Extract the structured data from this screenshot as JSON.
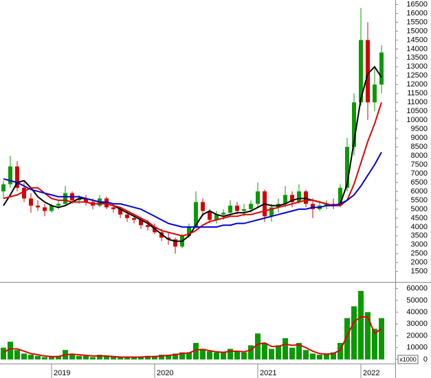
{
  "chart_data": [
    {
      "type": "candlestick",
      "open": [
        6000,
        6400,
        7400,
        6200,
        5600,
        5200,
        5100,
        4900,
        5200,
        5300,
        5900,
        5500,
        5600,
        5400,
        5200,
        5600,
        5100,
        5000,
        4700,
        4500,
        4400,
        4100,
        4000,
        3700,
        3400,
        3300,
        2900,
        3500,
        4000,
        5400,
        4900,
        4400,
        4700,
        4800,
        5200,
        4900,
        5000,
        5300,
        6000,
        4600,
        5100,
        5300,
        5800,
        5400,
        6000,
        5300,
        5000,
        5200,
        5300,
        5200,
        6200,
        8500,
        11000,
        14500,
        11000,
        12000
      ],
      "high": [
        6600,
        8000,
        7700,
        6500,
        5900,
        5500,
        5300,
        5300,
        5500,
        6300,
        6000,
        5800,
        5800,
        5600,
        5800,
        5700,
        5300,
        5100,
        4900,
        4700,
        4500,
        4400,
        4200,
        3900,
        3700,
        3400,
        3600,
        4200,
        6000,
        5600,
        5000,
        4900,
        5000,
        5500,
        5400,
        5300,
        5500,
        6500,
        6100,
        5300,
        5600,
        6300,
        6000,
        6400,
        6100,
        5600,
        5400,
        5500,
        5600,
        6400,
        9000,
        11500,
        16300,
        15500,
        13000,
        14200
      ],
      "low": [
        5600,
        6200,
        6000,
        5400,
        4800,
        4900,
        4600,
        4800,
        5000,
        5200,
        5300,
        5300,
        5200,
        5000,
        5100,
        5000,
        4800,
        4500,
        4300,
        4200,
        3900,
        3800,
        3600,
        3200,
        3000,
        2500,
        2800,
        3400,
        3900,
        4600,
        4200,
        4200,
        4400,
        4600,
        4700,
        4600,
        4800,
        5100,
        4300,
        4300,
        4800,
        5100,
        5100,
        5300,
        5100,
        4500,
        4900,
        5000,
        5000,
        5100,
        6000,
        8000,
        10800,
        10000,
        10500,
        11500
      ],
      "close": [
        6400,
        7400,
        6200,
        5600,
        5200,
        5100,
        4900,
        5200,
        5300,
        5900,
        5500,
        5600,
        5400,
        5200,
        5600,
        5100,
        5000,
        4700,
        4500,
        4400,
        4100,
        4000,
        3700,
        3400,
        3300,
        2900,
        3500,
        4000,
        5400,
        4900,
        4400,
        4700,
        4800,
        5200,
        4900,
        5000,
        5300,
        6000,
        4600,
        5100,
        5300,
        5800,
        5400,
        6000,
        5300,
        5000,
        5200,
        5300,
        5200,
        6200,
        8500,
        11000,
        14500,
        11000,
        12000,
        13800
      ],
      "up_color": "#0a9a00",
      "down_color": "#d40000",
      "lines": [
        {
          "color": "#000000",
          "values": [
            5200,
            5800,
            6500,
            6600,
            6200,
            5700,
            5400,
            5200,
            5100,
            5200,
            5400,
            5600,
            5600,
            5500,
            5400,
            5300,
            5200,
            5000,
            4800,
            4600,
            4400,
            4200,
            3900,
            3600,
            3300,
            3200,
            3200,
            3500,
            4100,
            4700,
            4900,
            4700,
            4600,
            4700,
            4800,
            4800,
            4900,
            5100,
            5300,
            5200,
            5200,
            5300,
            5500,
            5600,
            5600,
            5500,
            5400,
            5300,
            5200,
            5300,
            6400,
            8800,
            11200,
            12600,
            13000,
            12400
          ]
        },
        {
          "color": "#e00000",
          "values": [
            5600,
            5700,
            5800,
            6000,
            6200,
            6200,
            5900,
            5600,
            5500,
            5500,
            5400,
            5400,
            5400,
            5300,
            5300,
            5300,
            5200,
            5100,
            4900,
            4700,
            4500,
            4300,
            4000,
            3800,
            3700,
            3600,
            3500,
            3600,
            3800,
            4100,
            4300,
            4400,
            4500,
            4600,
            4600,
            4700,
            4700,
            4800,
            4900,
            5000,
            5100,
            5200,
            5300,
            5400,
            5500,
            5500,
            5400,
            5300,
            5200,
            5200,
            5500,
            6400,
            7600,
            8800,
            9800,
            11000
          ]
        },
        {
          "color": "#0000d0",
          "values": [
            6700,
            6600,
            6500,
            6300,
            6100,
            6000,
            5900,
            5800,
            5700,
            5700,
            5700,
            5700,
            5600,
            5500,
            5400,
            5400,
            5300,
            5300,
            5200,
            5100,
            5000,
            4800,
            4600,
            4400,
            4200,
            4100,
            4000,
            4000,
            4000,
            4000,
            4000,
            4000,
            4100,
            4100,
            4200,
            4200,
            4300,
            4400,
            4500,
            4600,
            4700,
            4800,
            4900,
            5000,
            5000,
            5100,
            5100,
            5200,
            5200,
            5300,
            5500,
            5800,
            6300,
            6900,
            7500,
            8200
          ]
        }
      ],
      "ylim": [
        950,
        16750
      ],
      "yticks": [
        1500,
        2000,
        2500,
        3000,
        3500,
        4000,
        4500,
        5000,
        5500,
        6000,
        6500,
        7000,
        7500,
        8000,
        8500,
        9000,
        9500,
        10000,
        10500,
        11000,
        11500,
        12000,
        12500,
        13000,
        13500,
        14000,
        14500,
        15000,
        15500,
        16000,
        16500
      ]
    },
    {
      "type": "bar",
      "categories": [
        null,
        null,
        null,
        null,
        null,
        null,
        null,
        "2019",
        null,
        null,
        null,
        null,
        null,
        null,
        null,
        null,
        null,
        null,
        null,
        null,
        null,
        null,
        "2020",
        null,
        null,
        null,
        null,
        null,
        null,
        null,
        null,
        null,
        null,
        null,
        null,
        null,
        null,
        "2021",
        null,
        null,
        null,
        null,
        null,
        null,
        null,
        null,
        null,
        null,
        null,
        null,
        null,
        null,
        "2022",
        null,
        null,
        null
      ],
      "values": [
        10000,
        15000,
        8000,
        5000,
        4000,
        3000,
        2000,
        2000,
        3000,
        8000,
        4000,
        3000,
        3000,
        2000,
        4000,
        3000,
        2000,
        2000,
        2000,
        2000,
        2000,
        3000,
        3000,
        4000,
        4000,
        5000,
        6000,
        6000,
        14000,
        9000,
        7000,
        6000,
        6000,
        9000,
        7000,
        6000,
        12000,
        22000,
        14000,
        9000,
        12000,
        18000,
        10000,
        14000,
        8000,
        5000,
        4000,
        5000,
        6000,
        14000,
        35000,
        45000,
        58000,
        40000,
        26000,
        35000
      ],
      "color": "#0a9a00",
      "lines": [
        {
          "color": "#e00000",
          "values": [
            6000,
            9000,
            9000,
            7000,
            5000,
            4000,
            3000,
            2500,
            2500,
            4000,
            4500,
            4000,
            3500,
            3000,
            3000,
            3000,
            2500,
            2000,
            2000,
            2000,
            2000,
            2500,
            2500,
            3000,
            3500,
            4000,
            5000,
            5500,
            8000,
            8500,
            7500,
            6500,
            6000,
            7000,
            7000,
            6500,
            8000,
            13000,
            14000,
            11000,
            11000,
            13000,
            12000,
            12500,
            10000,
            7000,
            5000,
            4500,
            5000,
            8000,
            20000,
            32000,
            36000,
            36000,
            22000,
            26000
          ]
        }
      ],
      "unit_label": "x1000",
      "ylim": [
        0,
        65000
      ],
      "yticks": [
        0,
        10000,
        20000,
        30000,
        40000,
        50000,
        60000
      ]
    }
  ]
}
